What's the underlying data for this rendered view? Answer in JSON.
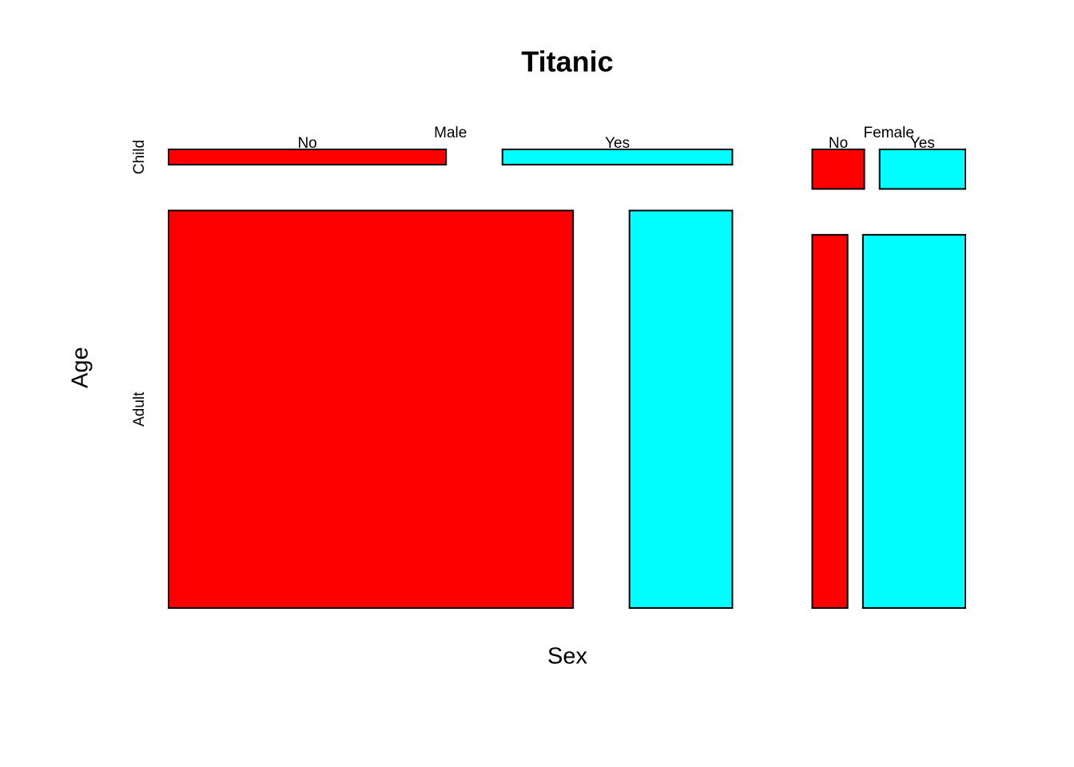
{
  "chart_data": {
    "type": "mosaic",
    "title": "Titanic",
    "xlabel": "Sex",
    "ylabel": "Age",
    "sex": [
      "Male",
      "Female"
    ],
    "age": [
      "Child",
      "Adult"
    ],
    "survived": [
      "No",
      "Yes"
    ],
    "colors": [
      "#ff0000",
      "#00ffff"
    ],
    "counts": [
      [
        [
          35,
          29
        ],
        [
          1329,
          338
        ]
      ],
      [
        [
          17,
          28
        ],
        [
          109,
          316
        ]
      ]
    ]
  }
}
